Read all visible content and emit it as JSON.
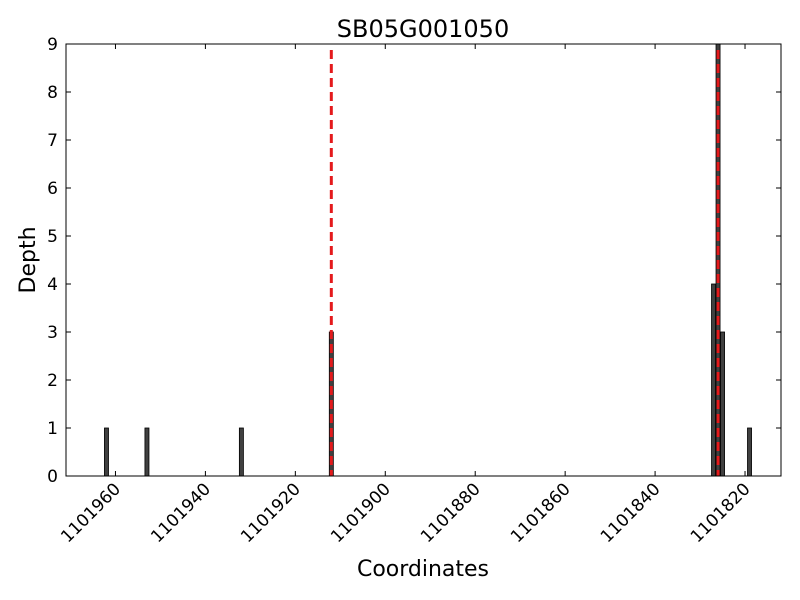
{
  "chart_data": {
    "type": "bar",
    "title": "SB05G001050",
    "xlabel": "Coordinates",
    "ylabel": "Depth",
    "x_axis_reversed": true,
    "xlim": [
      1101971,
      1101812
    ],
    "ylim": [
      0,
      9
    ],
    "xticks": [
      1101960,
      1101940,
      1101920,
      1101900,
      1101880,
      1101860,
      1101840,
      1101820
    ],
    "xtick_labels": [
      "1101960",
      "1101940",
      "1101920",
      "1101900",
      "1101880",
      "1101860",
      "1101840",
      "1101820"
    ],
    "yticks": [
      0,
      1,
      2,
      3,
      4,
      5,
      6,
      7,
      8,
      9
    ],
    "ytick_labels": [
      "0",
      "1",
      "2",
      "3",
      "4",
      "5",
      "6",
      "7",
      "8",
      "9"
    ],
    "grid": false,
    "bar_color": "#404040",
    "series": [
      {
        "x": [
          1101962,
          1101953,
          1101932,
          1101912,
          1101827,
          1101826,
          1101825,
          1101819
        ],
        "values": [
          1,
          1,
          1,
          3,
          4,
          9,
          3,
          1
        ]
      }
    ],
    "reference_lines": {
      "x": [
        1101912,
        1101826
      ],
      "color": "#e41a1c",
      "style": "dashed"
    }
  }
}
